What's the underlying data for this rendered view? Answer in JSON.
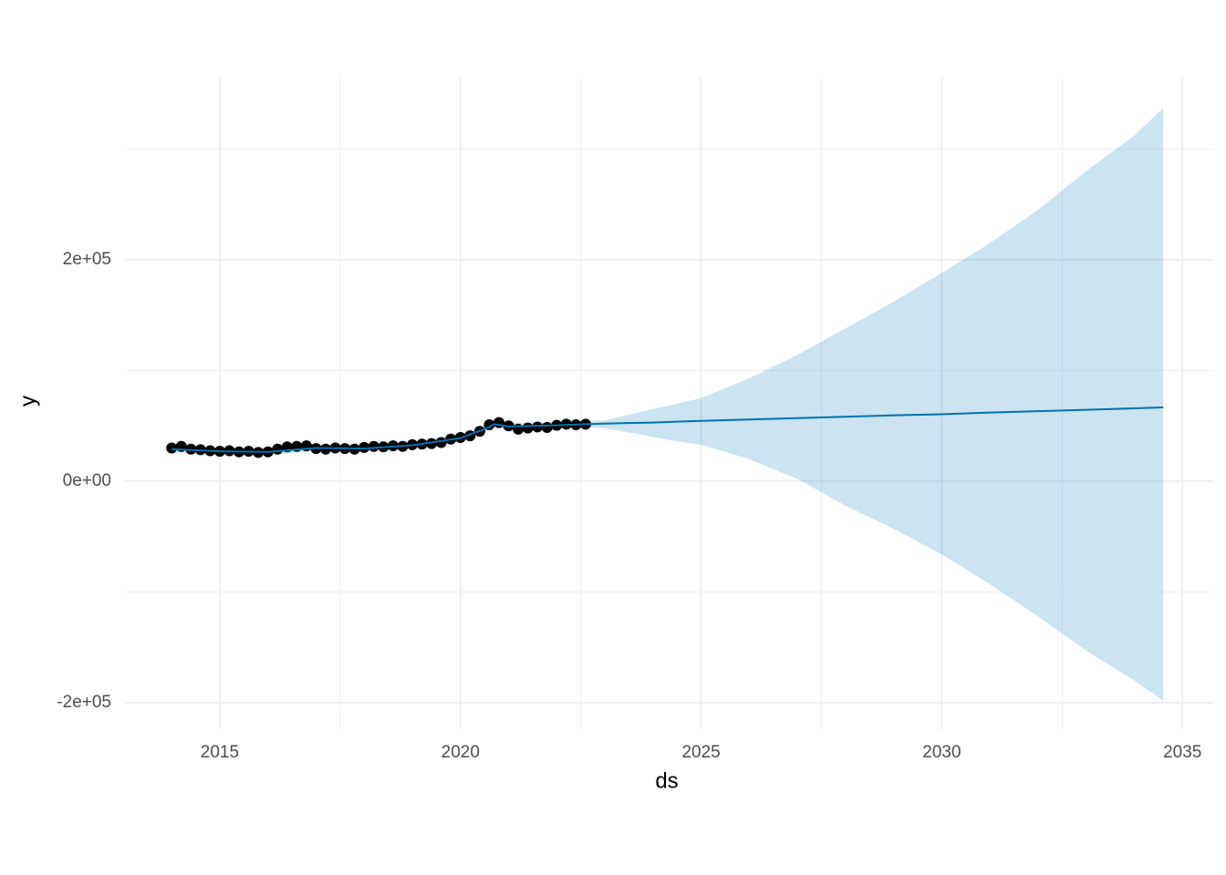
{
  "chart_data": {
    "type": "forecast",
    "x_label": "ds",
    "y_label": "y",
    "xlim": [
      2013.03,
      2035.64
    ],
    "ylim": [
      -223900,
      364600
    ],
    "xticks": [
      2015,
      2020,
      2025,
      2030,
      2035
    ],
    "yticks": [
      {
        "value": -200000,
        "label": "-2e+05"
      },
      {
        "value": 0,
        "label": "0e+00"
      },
      {
        "value": 200000,
        "label": "2e+05"
      }
    ],
    "xminor": [
      2017.5,
      2022.5,
      2027.5,
      2032.5
    ],
    "yminor": [
      -100000,
      100000,
      300000
    ],
    "grid": true,
    "observed": {
      "color": "#000000",
      "x": [
        2014.0,
        2014.2,
        2014.4,
        2014.6,
        2014.8,
        2015.0,
        2015.2,
        2015.4,
        2015.6,
        2015.8,
        2016.0,
        2016.2,
        2016.4,
        2016.6,
        2016.8,
        2017.0,
        2017.2,
        2017.4,
        2017.6,
        2017.8,
        2018.0,
        2018.2,
        2018.4,
        2018.6,
        2018.8,
        2019.0,
        2019.2,
        2019.4,
        2019.6,
        2019.8,
        2020.0,
        2020.2,
        2020.4,
        2020.6,
        2020.8,
        2021.0,
        2021.2,
        2021.4,
        2021.6,
        2021.8,
        2022.0,
        2022.2,
        2022.4,
        2022.6
      ],
      "y": [
        30000,
        31500,
        29000,
        28500,
        27500,
        27000,
        27500,
        26500,
        27000,
        26000,
        26500,
        29000,
        31000,
        31500,
        32000,
        29500,
        29000,
        30000,
        29500,
        29000,
        30500,
        31500,
        31000,
        32000,
        31500,
        33000,
        33500,
        34000,
        35000,
        38000,
        39500,
        41000,
        45000,
        51000,
        53000,
        50000,
        47000,
        48000,
        49000,
        48500,
        50500,
        51500,
        51000,
        51500
      ]
    },
    "forecast": {
      "color": "#0072B2",
      "x": [
        2014,
        2015,
        2016,
        2017,
        2018,
        2019,
        2020,
        2020.5,
        2020.7,
        2021,
        2022,
        2022.6,
        2023,
        2023.5,
        2024,
        2024.5,
        2025,
        2026,
        2027,
        2028,
        2029,
        2030,
        2031,
        2032,
        2033,
        2034,
        2034.6
      ],
      "yhat": [
        29000,
        27000,
        26500,
        30000,
        29500,
        32500,
        39000,
        47000,
        51500,
        49500,
        50500,
        51500,
        52000,
        52500,
        53000,
        53800,
        54500,
        55700,
        57000,
        58200,
        59500,
        60500,
        62000,
        63200,
        64500,
        65800,
        66700
      ],
      "lower": [
        26000,
        24000,
        23500,
        27000,
        26500,
        29500,
        36000,
        44000,
        48500,
        46500,
        47500,
        49000,
        48000,
        44000,
        40000,
        36000,
        33000,
        20000,
        2000,
        -22000,
        -43000,
        -66000,
        -93000,
        -122000,
        -153000,
        -180000,
        -198000
      ],
      "upper": [
        32000,
        30000,
        29500,
        33000,
        32500,
        35500,
        42000,
        50000,
        54500,
        52500,
        53500,
        54000,
        55000,
        60000,
        65000,
        70000,
        75000,
        93000,
        114000,
        138000,
        162000,
        188000,
        215000,
        245000,
        280000,
        312000,
        337000
      ]
    }
  }
}
